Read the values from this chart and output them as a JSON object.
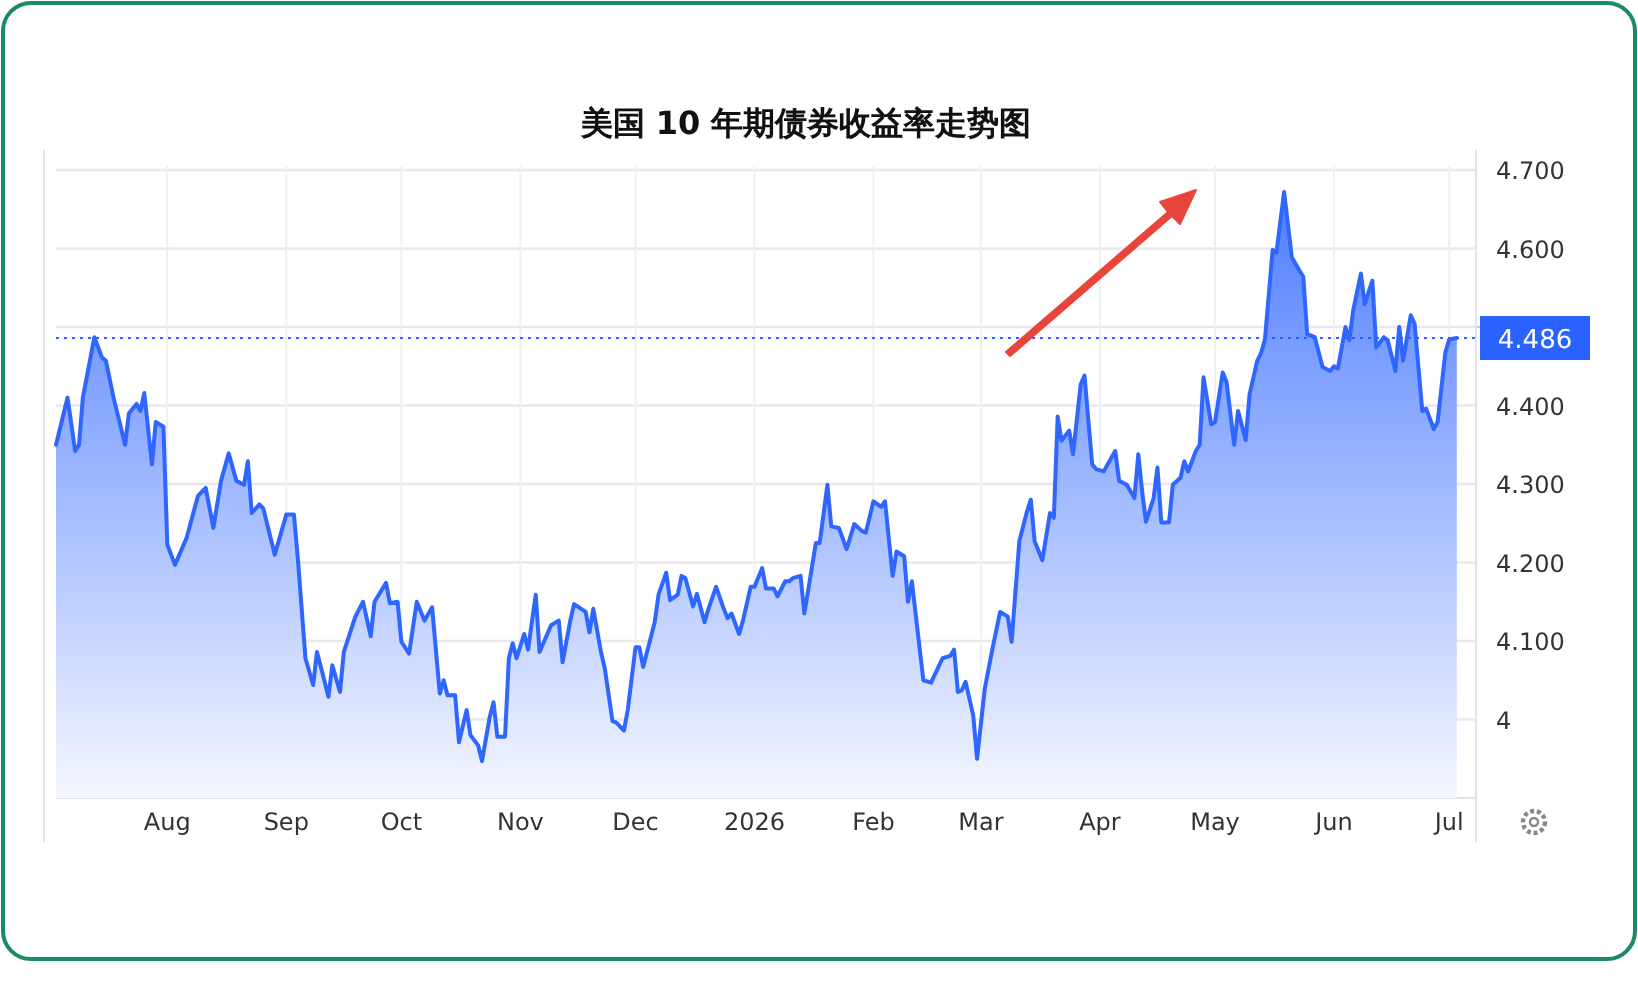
{
  "chart_data": {
    "type": "area",
    "title": "美国 10 年期债券收益率走势图",
    "xlim": [
      "2025-07-03",
      "2026-07-08"
    ],
    "xticks": [
      {
        "value": "2025-08-01",
        "label": "Aug"
      },
      {
        "value": "2025-09-01",
        "label": "Sep"
      },
      {
        "value": "2025-10-01",
        "label": "Oct"
      },
      {
        "value": "2025-11-01",
        "label": "Nov"
      },
      {
        "value": "2025-12-01",
        "label": "Dec"
      },
      {
        "value": "2026-01-01",
        "label": "2026"
      },
      {
        "value": "2026-02-01",
        "label": "Feb"
      },
      {
        "value": "2026-03-01",
        "label": "Mar"
      },
      {
        "value": "2026-04-01",
        "label": "Apr"
      },
      {
        "value": "2026-05-01",
        "label": "May"
      },
      {
        "value": "2026-06-01",
        "label": "Jun"
      },
      {
        "value": "2026-07-01",
        "label": "Jul"
      }
    ],
    "ylim": [
      3.9,
      4.7
    ],
    "yticks": [
      {
        "value": 4.0,
        "label": "4"
      },
      {
        "value": 4.1,
        "label": "4.100"
      },
      {
        "value": 4.2,
        "label": "4.200"
      },
      {
        "value": 4.3,
        "label": "4.300"
      },
      {
        "value": 4.4,
        "label": "4.400"
      },
      {
        "value": 4.5,
        "label": null
      },
      {
        "value": 4.6,
        "label": "4.600"
      },
      {
        "value": 4.7,
        "label": "4.700"
      }
    ],
    "grid": true,
    "ref_lines": [
      {
        "axis": "y",
        "value": 4.486,
        "label": "4.486",
        "color": "#2962ff",
        "line_style": "dotted"
      }
    ],
    "series": [
      {
        "color": "#2f66ff",
        "x": [
          "2025-07-03",
          "2025-07-06",
          "2025-07-08",
          "2025-07-09",
          "2025-07-10",
          "2025-07-13",
          "2025-07-15",
          "2025-07-16",
          "2025-07-18",
          "2025-07-21",
          "2025-07-22",
          "2025-07-24",
          "2025-07-25",
          "2025-07-26",
          "2025-07-28",
          "2025-07-29",
          "2025-07-31",
          "2025-08-01",
          "2025-08-03",
          "2025-08-06",
          "2025-08-09",
          "2025-08-11",
          "2025-08-13",
          "2025-08-15",
          "2025-08-17",
          "2025-08-19",
          "2025-08-21",
          "2025-08-22",
          "2025-08-23",
          "2025-08-25",
          "2025-08-26",
          "2025-08-29",
          "2025-09-01",
          "2025-09-03",
          "2025-09-04",
          "2025-09-06",
          "2025-09-08",
          "2025-09-09",
          "2025-09-12",
          "2025-09-13",
          "2025-09-15",
          "2025-09-16",
          "2025-09-19",
          "2025-09-21",
          "2025-09-23",
          "2025-09-24",
          "2025-09-27",
          "2025-09-28",
          "2025-09-30",
          "2025-10-01",
          "2025-10-03",
          "2025-10-05",
          "2025-10-07",
          "2025-10-09",
          "2025-10-11",
          "2025-10-12",
          "2025-10-13",
          "2025-10-15",
          "2025-10-16",
          "2025-10-18",
          "2025-10-19",
          "2025-10-21",
          "2025-10-22",
          "2025-10-24",
          "2025-10-25",
          "2025-10-26",
          "2025-10-28",
          "2025-10-29",
          "2025-10-30",
          "2025-10-31",
          "2025-11-02",
          "2025-11-03",
          "2025-11-05",
          "2025-11-06",
          "2025-11-09",
          "2025-11-11",
          "2025-11-12",
          "2025-11-14",
          "2025-11-15",
          "2025-11-18",
          "2025-11-19",
          "2025-11-20",
          "2025-11-22",
          "2025-11-23",
          "2025-11-25",
          "2025-11-26",
          "2025-11-28",
          "2025-11-29",
          "2025-12-01",
          "2025-12-02",
          "2025-12-03",
          "2025-12-06",
          "2025-12-07",
          "2025-12-09",
          "2025-12-10",
          "2025-12-12",
          "2025-12-13",
          "2025-12-14",
          "2025-12-16",
          "2025-12-17",
          "2025-12-19",
          "2025-12-20",
          "2025-12-22",
          "2025-12-24",
          "2025-12-25",
          "2025-12-26",
          "2025-12-28",
          "2025-12-29",
          "2025-12-31",
          "2026-01-01",
          "2026-01-03",
          "2026-01-04",
          "2026-01-06",
          "2026-01-07",
          "2026-01-09",
          "2026-01-10",
          "2026-01-11",
          "2026-01-13",
          "2026-01-14",
          "2026-01-17",
          "2026-01-18",
          "2026-01-20",
          "2026-01-21",
          "2026-01-23",
          "2026-01-25",
          "2026-01-27",
          "2026-01-29",
          "2026-01-30",
          "2026-02-01",
          "2026-02-03",
          "2026-02-04",
          "2026-02-06",
          "2026-02-07",
          "2026-02-09",
          "2026-02-10",
          "2026-02-11",
          "2026-02-14",
          "2026-02-16",
          "2026-02-19",
          "2026-02-21",
          "2026-02-22",
          "2026-02-23",
          "2026-02-24",
          "2026-02-25",
          "2026-02-27",
          "2026-02-28",
          "2026-03-02",
          "2026-03-04",
          "2026-03-06",
          "2026-03-08",
          "2026-03-09",
          "2026-03-11",
          "2026-03-13",
          "2026-03-14",
          "2026-03-15",
          "2026-03-17",
          "2026-03-19",
          "2026-03-20",
          "2026-03-21",
          "2026-03-22",
          "2026-03-24",
          "2026-03-25",
          "2026-03-27",
          "2026-03-28",
          "2026-03-29",
          "2026-03-30",
          "2026-03-31",
          "2026-04-02",
          "2026-04-03",
          "2026-04-05",
          "2026-04-06",
          "2026-04-08",
          "2026-04-10",
          "2026-04-11",
          "2026-04-12",
          "2026-04-13",
          "2026-04-15",
          "2026-04-16",
          "2026-04-17",
          "2026-04-19",
          "2026-04-20",
          "2026-04-22",
          "2026-04-23",
          "2026-04-24",
          "2026-04-26",
          "2026-04-27",
          "2026-04-28",
          "2026-04-30",
          "2026-05-01",
          "2026-05-03",
          "2026-05-04",
          "2026-05-06",
          "2026-05-07",
          "2026-05-09",
          "2026-05-10",
          "2026-05-12",
          "2026-05-13",
          "2026-05-14",
          "2026-05-16",
          "2026-05-17",
          "2026-05-19",
          "2026-05-21",
          "2026-05-23",
          "2026-05-24",
          "2026-05-25",
          "2026-05-27",
          "2026-05-29",
          "2026-05-31",
          "2026-06-01",
          "2026-06-02",
          "2026-06-04",
          "2026-06-05",
          "2026-06-06",
          "2026-06-08",
          "2026-06-09",
          "2026-06-11",
          "2026-06-12",
          "2026-06-14",
          "2026-06-15",
          "2026-06-17",
          "2026-06-18",
          "2026-06-19",
          "2026-06-21",
          "2026-06-22",
          "2026-06-24",
          "2026-06-25",
          "2026-06-27",
          "2026-06-28",
          "2026-06-30",
          "2026-07-01",
          "2026-07-03"
        ],
        "values": [
          4.35,
          4.41,
          4.342,
          4.35,
          4.41,
          4.487,
          4.461,
          4.457,
          4.41,
          4.35,
          4.39,
          4.402,
          4.393,
          4.416,
          4.325,
          4.379,
          4.373,
          4.223,
          4.197,
          4.231,
          4.285,
          4.295,
          4.244,
          4.304,
          4.339,
          4.304,
          4.299,
          4.329,
          4.263,
          4.274,
          4.269,
          4.21,
          4.261,
          4.261,
          4.206,
          4.078,
          4.044,
          4.086,
          4.029,
          4.069,
          4.035,
          4.086,
          4.131,
          4.15,
          4.106,
          4.15,
          4.174,
          4.148,
          4.15,
          4.099,
          4.084,
          4.15,
          4.126,
          4.143,
          4.033,
          4.05,
          4.031,
          4.031,
          3.971,
          4.012,
          3.98,
          3.967,
          3.947,
          4.003,
          4.022,
          3.978,
          3.978,
          4.078,
          4.097,
          4.078,
          4.109,
          4.089,
          4.159,
          4.086,
          4.12,
          4.126,
          4.073,
          4.126,
          4.147,
          4.137,
          4.111,
          4.141,
          4.086,
          4.065,
          3.998,
          3.996,
          3.986,
          4.013,
          4.092,
          4.092,
          4.067,
          4.124,
          4.159,
          4.187,
          4.152,
          4.159,
          4.183,
          4.18,
          4.144,
          4.16,
          4.124,
          4.141,
          4.169,
          4.141,
          4.129,
          4.135,
          4.109,
          4.126,
          4.169,
          4.169,
          4.193,
          4.167,
          4.167,
          4.157,
          4.176,
          4.176,
          4.18,
          4.183,
          4.135,
          4.225,
          4.225,
          4.299,
          4.246,
          4.244,
          4.217,
          4.249,
          4.24,
          4.238,
          4.278,
          4.271,
          4.278,
          4.183,
          4.214,
          4.208,
          4.15,
          4.176,
          4.05,
          4.047,
          4.078,
          4.081,
          4.089,
          4.035,
          4.037,
          4.048,
          4.005,
          3.95,
          4.039,
          4.09,
          4.137,
          4.131,
          4.099,
          4.227,
          4.265,
          4.28,
          4.227,
          4.203,
          4.263,
          4.257,
          4.386,
          4.355,
          4.368,
          4.338,
          4.427,
          4.438,
          4.38,
          4.325,
          4.319,
          4.316,
          4.325,
          4.342,
          4.304,
          4.299,
          4.282,
          4.338,
          4.291,
          4.252,
          4.282,
          4.321,
          4.251,
          4.251,
          4.299,
          4.308,
          4.329,
          4.316,
          4.342,
          4.35,
          4.436,
          4.376,
          4.379,
          4.442,
          4.43,
          4.35,
          4.393,
          4.356,
          4.414,
          4.457,
          4.467,
          4.484,
          4.598,
          4.595,
          4.672,
          4.589,
          4.572,
          4.564,
          4.491,
          4.487,
          4.449,
          4.444,
          4.45,
          4.447,
          4.5,
          4.483,
          4.521,
          4.568,
          4.529,
          4.559,
          4.474,
          4.487,
          4.483,
          4.444,
          4.5,
          4.457,
          4.515,
          4.504,
          4.393,
          4.396,
          4.37,
          4.379,
          4.467,
          4.484,
          4.486
        ]
      }
    ]
  }
}
